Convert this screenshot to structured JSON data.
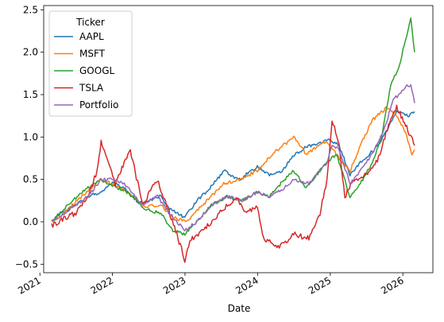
{
  "chart_data": {
    "type": "line",
    "title": "",
    "xlabel": "Date",
    "ylabel": "",
    "xlim": [
      "2021-01-20",
      "2026-06-01"
    ],
    "ylim": [
      -0.6,
      2.55
    ],
    "grid": false,
    "legend": {
      "title": "Ticker",
      "placement": "top-left"
    },
    "x_ticks": [
      "2021",
      "2022",
      "2023",
      "2024",
      "2025",
      "2026"
    ],
    "y_ticks": [
      "−0.5",
      "0.0",
      "0.5",
      "1.0",
      "1.5",
      "2.0",
      "2.5"
    ],
    "series": [
      {
        "name": "AAPL",
        "color": "#1f77b4",
        "points": [
          [
            "2021-03-01",
            0.0
          ],
          [
            "2021-04-15",
            0.1
          ],
          [
            "2021-07-01",
            0.2
          ],
          [
            "2021-09-01",
            0.3
          ],
          [
            "2021-11-01",
            0.35
          ],
          [
            "2022-01-01",
            0.47
          ],
          [
            "2022-03-01",
            0.4
          ],
          [
            "2022-05-15",
            0.22
          ],
          [
            "2022-07-01",
            0.25
          ],
          [
            "2022-09-01",
            0.3
          ],
          [
            "2022-10-15",
            0.15
          ],
          [
            "2022-12-31",
            0.05
          ],
          [
            "2023-03-01",
            0.25
          ],
          [
            "2023-05-01",
            0.38
          ],
          [
            "2023-07-15",
            0.6
          ],
          [
            "2023-10-01",
            0.5
          ],
          [
            "2023-12-31",
            0.65
          ],
          [
            "2024-03-01",
            0.55
          ],
          [
            "2024-05-01",
            0.6
          ],
          [
            "2024-07-01",
            0.78
          ],
          [
            "2024-09-01",
            0.88
          ],
          [
            "2024-12-31",
            0.97
          ],
          [
            "2025-02-15",
            0.9
          ],
          [
            "2025-04-10",
            0.55
          ],
          [
            "2025-06-01",
            0.7
          ],
          [
            "2025-09-01",
            0.9
          ],
          [
            "2025-12-01",
            1.3
          ],
          [
            "2026-02-01",
            1.25
          ],
          [
            "2026-03-01",
            1.3
          ]
        ]
      },
      {
        "name": "MSFT",
        "color": "#ff7f0e",
        "points": [
          [
            "2021-03-01",
            0.0
          ],
          [
            "2021-05-01",
            0.1
          ],
          [
            "2021-08-01",
            0.3
          ],
          [
            "2021-11-01",
            0.5
          ],
          [
            "2022-01-01",
            0.45
          ],
          [
            "2022-03-15",
            0.35
          ],
          [
            "2022-06-15",
            0.18
          ],
          [
            "2022-09-01",
            0.2
          ],
          [
            "2022-11-01",
            0.05
          ],
          [
            "2023-01-10",
            0.0
          ],
          [
            "2023-04-01",
            0.2
          ],
          [
            "2023-07-15",
            0.45
          ],
          [
            "2023-10-01",
            0.5
          ],
          [
            "2023-12-31",
            0.6
          ],
          [
            "2024-03-15",
            0.8
          ],
          [
            "2024-07-01",
            1.0
          ],
          [
            "2024-09-01",
            0.8
          ],
          [
            "2024-12-15",
            0.95
          ],
          [
            "2025-03-01",
            0.7
          ],
          [
            "2025-04-10",
            0.6
          ],
          [
            "2025-06-01",
            0.9
          ],
          [
            "2025-08-01",
            1.2
          ],
          [
            "2025-10-15",
            1.35
          ],
          [
            "2025-12-01",
            1.25
          ],
          [
            "2026-01-15",
            1.05
          ],
          [
            "2026-02-15",
            0.8
          ],
          [
            "2026-03-01",
            0.85
          ]
        ]
      },
      {
        "name": "GOOGL",
        "color": "#2ca02c",
        "points": [
          [
            "2021-03-01",
            0.0
          ],
          [
            "2021-05-01",
            0.15
          ],
          [
            "2021-08-01",
            0.35
          ],
          [
            "2021-11-01",
            0.5
          ],
          [
            "2022-01-01",
            0.42
          ],
          [
            "2022-03-15",
            0.35
          ],
          [
            "2022-06-15",
            0.15
          ],
          [
            "2022-09-01",
            0.1
          ],
          [
            "2022-11-01",
            -0.1
          ],
          [
            "2022-12-31",
            -0.15
          ],
          [
            "2023-03-01",
            0.0
          ],
          [
            "2023-05-15",
            0.2
          ],
          [
            "2023-08-01",
            0.3
          ],
          [
            "2023-10-15",
            0.25
          ],
          [
            "2023-12-31",
            0.35
          ],
          [
            "2024-03-01",
            0.3
          ],
          [
            "2024-05-15",
            0.5
          ],
          [
            "2024-07-01",
            0.6
          ],
          [
            "2024-09-01",
            0.4
          ],
          [
            "2024-12-15",
            0.7
          ],
          [
            "2025-02-01",
            0.8
          ],
          [
            "2025-04-10",
            0.3
          ],
          [
            "2025-06-01",
            0.45
          ],
          [
            "2025-08-01",
            0.7
          ],
          [
            "2025-09-15",
            1.0
          ],
          [
            "2025-11-01",
            1.6
          ],
          [
            "2025-12-15",
            1.85
          ],
          [
            "2026-01-20",
            2.2
          ],
          [
            "2026-02-10",
            2.4
          ],
          [
            "2026-03-01",
            2.0
          ]
        ]
      },
      {
        "name": "TSLA",
        "color": "#d62728",
        "points": [
          [
            "2021-03-01",
            -0.05
          ],
          [
            "2021-05-01",
            0.05
          ],
          [
            "2021-07-01",
            0.1
          ],
          [
            "2021-09-01",
            0.3
          ],
          [
            "2021-10-15",
            0.6
          ],
          [
            "2021-11-05",
            0.95
          ],
          [
            "2021-12-15",
            0.7
          ],
          [
            "2022-01-15",
            0.45
          ],
          [
            "2022-03-01",
            0.7
          ],
          [
            "2022-04-01",
            0.85
          ],
          [
            "2022-06-01",
            0.2
          ],
          [
            "2022-08-15",
            0.5
          ],
          [
            "2022-10-01",
            0.2
          ],
          [
            "2022-11-15",
            -0.1
          ],
          [
            "2022-12-31",
            -0.45
          ],
          [
            "2023-02-01",
            -0.2
          ],
          [
            "2023-04-01",
            -0.1
          ],
          [
            "2023-07-15",
            0.15
          ],
          [
            "2023-09-15",
            0.3
          ],
          [
            "2023-11-01",
            0.1
          ],
          [
            "2023-12-31",
            0.2
          ],
          [
            "2024-02-01",
            -0.2
          ],
          [
            "2024-04-20",
            -0.3
          ],
          [
            "2024-07-01",
            -0.15
          ],
          [
            "2024-09-15",
            -0.2
          ],
          [
            "2024-11-10",
            0.1
          ],
          [
            "2024-12-15",
            0.5
          ],
          [
            "2025-01-10",
            1.2
          ],
          [
            "2025-02-15",
            0.9
          ],
          [
            "2025-03-15",
            0.3
          ],
          [
            "2025-05-01",
            0.5
          ],
          [
            "2025-07-01",
            0.55
          ],
          [
            "2025-09-01",
            0.75
          ],
          [
            "2025-10-15",
            1.1
          ],
          [
            "2025-12-01",
            1.35
          ],
          [
            "2026-01-15",
            1.15
          ],
          [
            "2026-03-01",
            0.9
          ]
        ]
      },
      {
        "name": "Portfolio",
        "color": "#9467bd",
        "points": [
          [
            "2021-03-01",
            0.0
          ],
          [
            "2021-05-01",
            0.1
          ],
          [
            "2021-07-01",
            0.2
          ],
          [
            "2021-09-01",
            0.3
          ],
          [
            "2021-11-05",
            0.5
          ],
          [
            "2022-01-01",
            0.5
          ],
          [
            "2022-03-01",
            0.45
          ],
          [
            "2022-06-01",
            0.2
          ],
          [
            "2022-08-15",
            0.3
          ],
          [
            "2022-10-15",
            0.1
          ],
          [
            "2022-12-31",
            -0.1
          ],
          [
            "2023-03-01",
            0.0
          ],
          [
            "2023-05-15",
            0.2
          ],
          [
            "2023-08-01",
            0.3
          ],
          [
            "2023-10-15",
            0.25
          ],
          [
            "2023-12-31",
            0.35
          ],
          [
            "2024-03-01",
            0.3
          ],
          [
            "2024-05-15",
            0.4
          ],
          [
            "2024-07-01",
            0.5
          ],
          [
            "2024-09-15",
            0.45
          ],
          [
            "2024-12-15",
            0.7
          ],
          [
            "2025-01-10",
            0.9
          ],
          [
            "2025-02-15",
            0.85
          ],
          [
            "2025-04-10",
            0.45
          ],
          [
            "2025-06-01",
            0.6
          ],
          [
            "2025-08-01",
            0.8
          ],
          [
            "2025-10-01",
            1.1
          ],
          [
            "2025-11-15",
            1.45
          ],
          [
            "2025-12-15",
            1.5
          ],
          [
            "2026-01-15",
            1.6
          ],
          [
            "2026-02-10",
            1.6
          ],
          [
            "2026-03-01",
            1.4
          ]
        ]
      }
    ]
  }
}
